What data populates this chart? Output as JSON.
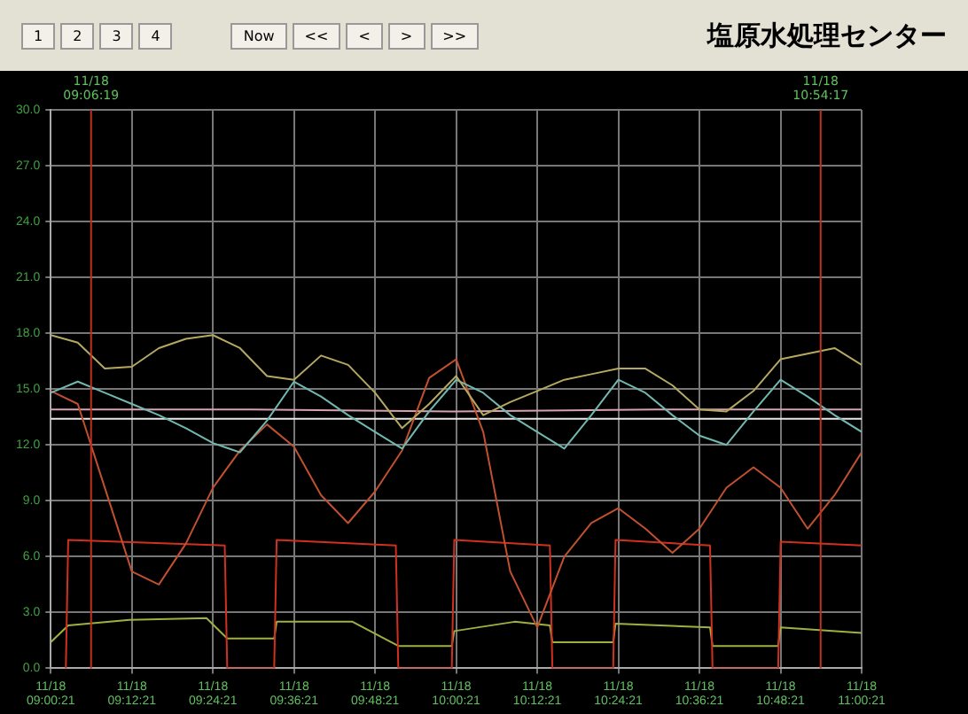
{
  "chart_data": {
    "type": "line",
    "title": "塩原水処理センター",
    "annotations": [
      "1",
      "2",
      "3",
      "4",
      "Now",
      "<<",
      "<",
      ">",
      ">>"
    ],
    "x": [
      "--11-18T09:00:21",
      "--11-18T09:04:21",
      "--11-18T09:08:21",
      "--11-18T09:12:21",
      "--11-18T09:16:21",
      "--11-18T09:20:21",
      "--11-18T09:24:21",
      "--11-18T09:28:21",
      "--11-18T09:32:21",
      "--11-18T09:36:21",
      "--11-18T09:40:21",
      "--11-18T09:44:21",
      "--11-18T09:48:21",
      "--11-18T09:52:21",
      "--11-18T09:56:21",
      "--11-18T10:00:21",
      "--11-18T10:04:21",
      "--11-18T10:08:21",
      "--11-18T10:12:21",
      "--11-18T10:16:21",
      "--11-18T10:20:21",
      "--11-18T10:24:21",
      "--11-18T10:28:21",
      "--11-18T10:32:21",
      "--11-18T10:36:21",
      "--11-18T10:40:21",
      "--11-18T10:44:21",
      "--11-18T10:48:21",
      "--11-18T10:52:21",
      "--11-18T10:56:21",
      "--11-18T11:00:21"
    ],
    "series": [
      {
        "color": "#b5a860",
        "values": [
          17.9,
          17.5,
          16.1,
          16.2,
          17.2,
          17.7,
          17.9,
          17.2,
          15.7,
          15.5,
          16.8,
          16.3,
          14.8,
          12.9,
          14.2,
          15.7,
          13.6,
          14.3,
          14.9,
          15.5,
          15.8,
          16.1,
          16.1,
          15.2,
          13.9,
          13.8,
          14.9,
          16.6,
          16.9,
          17.2,
          16.3
        ]
      },
      {
        "color": "#70b8b0",
        "values": [
          14.8,
          15.4,
          14.8,
          14.2,
          13.6,
          12.9,
          12.1,
          11.6,
          13.3,
          15.4,
          14.6,
          13.6,
          12.7,
          11.8,
          13.8,
          15.5,
          14.8,
          13.6,
          12.7,
          11.8,
          13.6,
          15.5,
          14.8,
          13.6,
          12.5,
          12.0,
          13.8,
          15.5,
          14.6,
          13.6,
          12.7
        ]
      },
      {
        "color": "#c05030",
        "values": [
          14.9,
          14.2,
          9.7,
          5.2,
          4.5,
          6.7,
          9.7,
          11.7,
          13.1,
          11.9,
          9.3,
          7.8,
          9.5,
          11.7,
          15.6,
          16.6,
          12.7,
          5.2,
          2.2,
          6.0,
          7.8,
          8.6,
          7.5,
          6.2,
          7.5,
          9.7,
          10.8,
          9.7,
          7.5,
          9.3,
          11.6
        ]
      },
      {
        "color": "#d8a0b0",
        "x": [
          "--11-18T09:00:21",
          "--11-18T09:30:00",
          "--11-18T10:00:00",
          "--11-18T10:30:00",
          "--11-18T11:00:21"
        ],
        "values": [
          13.9,
          13.9,
          13.8,
          13.9,
          13.9
        ]
      },
      {
        "color": "#e8e8e8",
        "x": [
          "--11-18T09:00:21",
          "--11-18T09:30:00",
          "--11-18T10:00:00",
          "--11-18T10:30:00",
          "--11-18T11:00:21"
        ],
        "values": [
          13.4,
          13.4,
          13.4,
          13.4,
          13.4
        ]
      },
      {
        "color": "#d03020",
        "x": [
          "--11-18T09:02:35",
          "--11-18T09:02:56",
          "--11-18T09:26:06",
          "--11-18T09:26:28",
          "--11-18T09:33:25",
          "--11-18T09:33:47",
          "--11-18T09:51:25",
          "--11-18T09:51:47",
          "--11-18T09:59:42",
          "--11-18T10:00:04",
          "--11-18T10:14:13",
          "--11-18T10:14:35",
          "--11-18T10:23:35",
          "--11-18T10:23:56",
          "--11-18T10:37:55",
          "--11-18T10:38:17",
          "--11-18T10:48:00",
          "--11-18T10:48:22",
          "--11-18T11:00:21"
        ],
        "values": [
          0,
          6.9,
          6.6,
          0,
          0,
          6.9,
          6.6,
          0,
          0,
          6.9,
          6.6,
          0,
          0,
          6.9,
          6.6,
          0,
          0,
          6.8,
          6.6
        ]
      },
      {
        "color": "#a0b040",
        "x": [
          "--11-18T09:00:21",
          "--11-18T09:02:56",
          "--11-18T09:12:00",
          "--11-18T09:23:24",
          "--11-18T09:26:28",
          "--11-18T09:33:25",
          "--11-18T09:33:47",
          "--11-18T09:45:00",
          "--11-18T09:51:47",
          "--11-18T09:59:42",
          "--11-18T10:00:04",
          "--11-18T10:09:00",
          "--11-18T10:14:13",
          "--11-18T10:14:35",
          "--11-18T10:23:35",
          "--11-18T10:23:56",
          "--11-18T10:37:55",
          "--11-18T10:38:17",
          "--11-18T10:48:00",
          "--11-18T10:48:22",
          "--11-18T11:00:21"
        ],
        "values": [
          1.4,
          2.3,
          2.6,
          2.7,
          1.6,
          1.6,
          2.5,
          2.5,
          1.2,
          1.2,
          2.0,
          2.5,
          2.3,
          1.4,
          1.4,
          2.4,
          2.2,
          1.2,
          1.2,
          2.2,
          1.9
        ]
      }
    ],
    "xlim": [
      "--11-18T09:00:21",
      "--11-18T11:00:21"
    ],
    "xticks": [
      {
        "value": "--11-18T09:00:21",
        "label": "11/18 09:00:21"
      },
      {
        "value": "--11-18T09:12:21",
        "label": "11/18 09:12:21"
      },
      {
        "value": "--11-18T09:24:21",
        "label": "11/18 09:24:21"
      },
      {
        "value": "--11-18T09:36:21",
        "label": "11/18 09:36:21"
      },
      {
        "value": "--11-18T09:48:21",
        "label": "11/18 09:48:21"
      },
      {
        "value": "--11-18T10:00:21",
        "label": "11/18 10:00:21"
      },
      {
        "value": "--11-18T10:12:21",
        "label": "11/18 10:12:21"
      },
      {
        "value": "--11-18T10:24:21",
        "label": "11/18 10:24:21"
      },
      {
        "value": "--11-18T10:36:21",
        "label": "11/18 10:36:21"
      },
      {
        "value": "--11-18T10:48:21",
        "label": "11/18 10:48:21"
      },
      {
        "value": "--11-18T11:00:21",
        "label": "11/18 11:00:21"
      }
    ],
    "ylim": [
      0,
      30
    ],
    "yticks": [
      {
        "value": 0,
        "label": "0.0"
      },
      {
        "value": 3,
        "label": "3.0"
      },
      {
        "value": 6,
        "label": "6.0"
      },
      {
        "value": 9,
        "label": "9.0"
      },
      {
        "value": 12,
        "label": "12.0"
      },
      {
        "value": 15,
        "label": "15.0"
      },
      {
        "value": 18,
        "label": "18.0"
      },
      {
        "value": 21,
        "label": "21.0"
      },
      {
        "value": 24,
        "label": "24.0"
      },
      {
        "value": 27,
        "label": "27.0"
      },
      {
        "value": 30,
        "label": "30.0"
      }
    ],
    "ref_lines": [
      {
        "axis": "x",
        "value": "--11-18T09:06:19",
        "label": "11/18 09:06:19",
        "color": "#c03020"
      },
      {
        "axis": "x",
        "value": "--11-18T10:54:17",
        "label": "11/18 10:54:17",
        "color": "#c03020"
      }
    ],
    "grid": true,
    "marker": "none",
    "line_style": "solid"
  }
}
